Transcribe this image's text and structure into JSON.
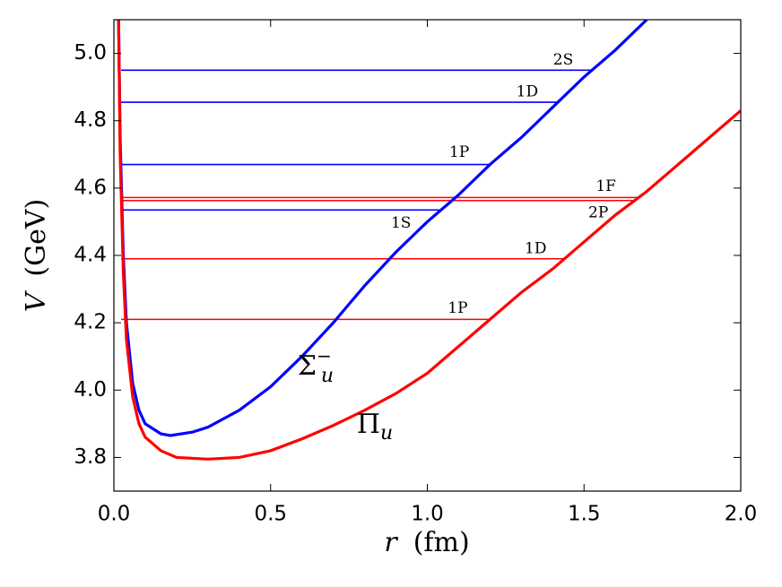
{
  "chart_data": {
    "type": "line",
    "xlabel": {
      "symbol": "r",
      "unit": "(fm)"
    },
    "ylabel": {
      "symbol": "V",
      "unit": "(GeV)"
    },
    "xlim": [
      0,
      2.0
    ],
    "ylim": [
      3.7,
      5.1
    ],
    "xticks": [
      {
        "value": 0,
        "label": "0.0"
      },
      0.5,
      {
        "value": 1,
        "label": "1.0"
      },
      1.5,
      {
        "value": 2,
        "label": "2.0"
      }
    ],
    "yticks": [
      3.8,
      {
        "value": 4,
        "label": "4.0"
      },
      4.2,
      4.4,
      4.6,
      4.8,
      {
        "value": 5,
        "label": "5.0"
      }
    ],
    "series": [
      {
        "name": "Σ",
        "subscript": "u",
        "superscript": "−",
        "color": "#0000ff",
        "x": [
          0.015,
          0.02,
          0.03,
          0.04,
          0.06,
          0.08,
          0.1,
          0.15,
          0.18,
          0.25,
          0.3,
          0.4,
          0.5,
          0.6,
          0.7,
          0.8,
          0.9,
          1.0,
          1.1,
          1.2,
          1.3,
          1.4,
          1.5,
          1.6,
          1.7
        ],
        "values": [
          5.1,
          4.75,
          4.4,
          4.2,
          4.02,
          3.94,
          3.9,
          3.87,
          3.865,
          3.875,
          3.89,
          3.94,
          4.01,
          4.1,
          4.2,
          4.31,
          4.41,
          4.5,
          4.58,
          4.67,
          4.75,
          4.84,
          4.93,
          5.01,
          5.1
        ]
      },
      {
        "name": "Π",
        "subscript": "u",
        "color": "#ff0000",
        "x": [
          0.015,
          0.02,
          0.03,
          0.04,
          0.06,
          0.08,
          0.1,
          0.15,
          0.2,
          0.3,
          0.4,
          0.5,
          0.6,
          0.7,
          0.8,
          0.9,
          1.0,
          1.1,
          1.2,
          1.3,
          1.4,
          1.5,
          1.6,
          1.7,
          1.8,
          1.9,
          2.0
        ],
        "values": [
          5.1,
          4.7,
          4.35,
          4.15,
          3.98,
          3.9,
          3.86,
          3.82,
          3.8,
          3.795,
          3.8,
          3.82,
          3.855,
          3.895,
          3.94,
          3.99,
          4.05,
          4.13,
          4.21,
          4.29,
          4.36,
          4.44,
          4.52,
          4.59,
          4.67,
          4.75,
          4.83
        ]
      }
    ],
    "levels": [
      {
        "name": "2S",
        "value": 4.95,
        "x": [
          0.023,
          1.525
        ],
        "color": "#0000ff"
      },
      {
        "name": "1D",
        "value": 4.855,
        "x": [
          0.023,
          1.416
        ],
        "color": "#0000ff"
      },
      {
        "name": "1P",
        "value": 4.67,
        "x": [
          0.023,
          1.205
        ],
        "color": "#0000ff"
      },
      {
        "name": "1S",
        "value": 4.535,
        "x": [
          0.023,
          1.045
        ],
        "color": "#0000ff"
      },
      {
        "name": "1F",
        "value": 4.572,
        "x": [
          0.023,
          1.67
        ],
        "color": "#ff0000"
      },
      {
        "name": "2P",
        "value": 4.563,
        "x": [
          0.023,
          1.66
        ],
        "color": "#ff0000"
      },
      {
        "name": "1D",
        "value": 4.39,
        "x": [
          0.023,
          1.44
        ],
        "color": "#ff0000"
      },
      {
        "name": "1P",
        "value": 4.21,
        "x": [
          0.023,
          1.2
        ],
        "color": "#ff0000"
      }
    ]
  }
}
